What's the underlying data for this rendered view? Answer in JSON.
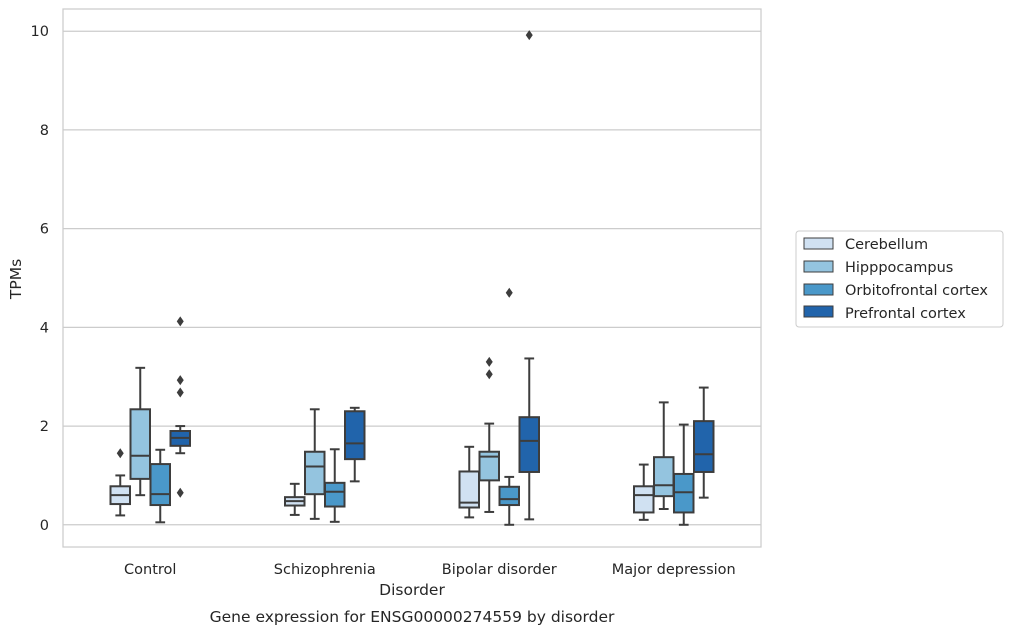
{
  "chart_data": {
    "type": "box",
    "title": "",
    "caption": "Gene expression for ENSG00000274559 by disorder",
    "xlabel": "Disorder",
    "ylabel": "TPMs",
    "ylim": [
      -0.45,
      10.45
    ],
    "yticks": [
      0,
      2,
      4,
      6,
      8,
      10
    ],
    "grid": "horizontal",
    "legend_position": "right",
    "categories": [
      "Control",
      "Schizophrenia",
      "Bipolar disorder",
      "Major depression"
    ],
    "series": [
      {
        "name": "Cerebellum",
        "color": "#d0e1f2",
        "boxes": [
          {
            "whisker_low": 0.19,
            "q1": 0.42,
            "median": 0.6,
            "q3": 0.78,
            "whisker_high": 1.0,
            "outliers": [
              1.45
            ]
          },
          {
            "whisker_low": 0.2,
            "q1": 0.39,
            "median": 0.48,
            "q3": 0.56,
            "whisker_high": 0.83,
            "outliers": []
          },
          {
            "whisker_low": 0.15,
            "q1": 0.35,
            "median": 0.45,
            "q3": 1.08,
            "whisker_high": 1.58,
            "outliers": []
          },
          {
            "whisker_low": 0.1,
            "q1": 0.25,
            "median": 0.6,
            "q3": 0.78,
            "whisker_high": 1.22,
            "outliers": []
          }
        ]
      },
      {
        "name": "Hipppocampus",
        "color": "#94c4df",
        "boxes": [
          {
            "whisker_low": 0.6,
            "q1": 0.93,
            "median": 1.4,
            "q3": 2.34,
            "whisker_high": 3.18,
            "outliers": []
          },
          {
            "whisker_low": 0.12,
            "q1": 0.62,
            "median": 1.18,
            "q3": 1.48,
            "whisker_high": 2.34,
            "outliers": []
          },
          {
            "whisker_low": 0.26,
            "q1": 0.9,
            "median": 1.38,
            "q3": 1.48,
            "whisker_high": 2.05,
            "outliers": [
              3.05,
              3.3
            ]
          },
          {
            "whisker_low": 0.32,
            "q1": 0.58,
            "median": 0.8,
            "q3": 1.37,
            "whisker_high": 2.48,
            "outliers": []
          }
        ]
      },
      {
        "name": "Orbitofrontal cortex",
        "color": "#4a98c9",
        "boxes": [
          {
            "whisker_low": 0.05,
            "q1": 0.4,
            "median": 0.62,
            "q3": 1.23,
            "whisker_high": 1.52,
            "outliers": []
          },
          {
            "whisker_low": 0.06,
            "q1": 0.37,
            "median": 0.67,
            "q3": 0.85,
            "whisker_high": 1.53,
            "outliers": []
          },
          {
            "whisker_low": 0.0,
            "q1": 0.4,
            "median": 0.52,
            "q3": 0.77,
            "whisker_high": 0.97,
            "outliers": [
              4.7
            ]
          },
          {
            "whisker_low": 0.0,
            "q1": 0.25,
            "median": 0.66,
            "q3": 1.03,
            "whisker_high": 2.03,
            "outliers": []
          }
        ]
      },
      {
        "name": "Prefrontal cortex",
        "color": "#2164ab",
        "boxes": [
          {
            "whisker_low": 1.45,
            "q1": 1.6,
            "median": 1.76,
            "q3": 1.9,
            "whisker_high": 2.0,
            "outliers": [
              0.65,
              2.68,
              2.93,
              4.12
            ]
          },
          {
            "whisker_low": 0.88,
            "q1": 1.33,
            "median": 1.65,
            "q3": 2.3,
            "whisker_high": 2.37,
            "outliers": []
          },
          {
            "whisker_low": 0.11,
            "q1": 1.07,
            "median": 1.7,
            "q3": 2.18,
            "whisker_high": 3.37,
            "outliers": [
              9.92
            ]
          },
          {
            "whisker_low": 0.55,
            "q1": 1.07,
            "median": 1.43,
            "q3": 2.1,
            "whisker_high": 2.78,
            "outliers": []
          }
        ]
      }
    ]
  },
  "colors": {
    "grid": "#cccccc",
    "axes_edge": "#cccccc",
    "box_edge": "#3d3d3d",
    "text": "#262626"
  }
}
